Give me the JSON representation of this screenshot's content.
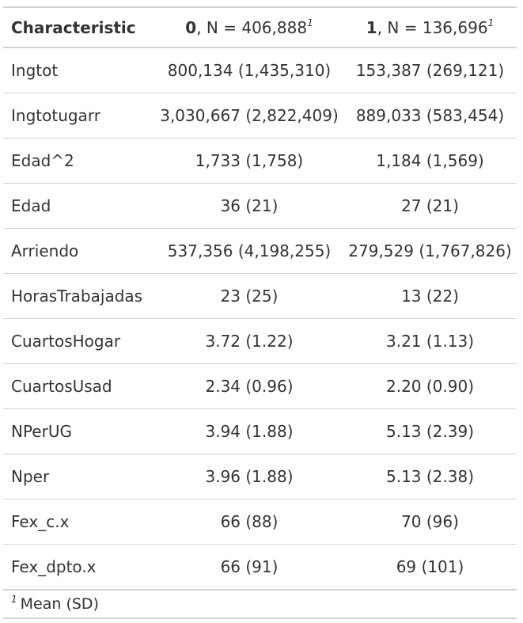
{
  "header": {
    "characteristic": "Characteristic",
    "group0": {
      "name": "0",
      "n_text": ", N = 406,888",
      "footnote_mark": "1"
    },
    "group1": {
      "name": "1",
      "n_text": ", N = 136,696",
      "footnote_mark": "1"
    }
  },
  "rows": [
    {
      "label": "Ingtot",
      "v0": "800,134 (1,435,310)",
      "v1": "153,387 (269,121)"
    },
    {
      "label": "Ingtotugarr",
      "v0": "3,030,667 (2,822,409)",
      "v1": "889,033 (583,454)"
    },
    {
      "label": "Edad^2",
      "v0": "1,733 (1,758)",
      "v1": "1,184 (1,569)"
    },
    {
      "label": "Edad",
      "v0": "36 (21)",
      "v1": "27 (21)"
    },
    {
      "label": "Arriendo",
      "v0": "537,356 (4,198,255)",
      "v1": "279,529 (1,767,826)"
    },
    {
      "label": "HorasTrabajadas",
      "v0": "23 (25)",
      "v1": "13 (22)"
    },
    {
      "label": "CuartosHogar",
      "v0": "3.72 (1.22)",
      "v1": "3.21 (1.13)"
    },
    {
      "label": "CuartosUsad",
      "v0": "2.34 (0.96)",
      "v1": "2.20 (0.90)"
    },
    {
      "label": "NPerUG",
      "v0": "3.94 (1.88)",
      "v1": "5.13 (2.39)"
    },
    {
      "label": "Nper",
      "v0": "3.96 (1.88)",
      "v1": "5.13 (2.38)"
    },
    {
      "label": "Fex_c.x",
      "v0": "66 (88)",
      "v1": "70 (96)"
    },
    {
      "label": "Fex_dpto.x",
      "v0": "66 (91)",
      "v1": "69 (101)"
    }
  ],
  "footnote": {
    "mark": "1",
    "text": "Mean (SD)"
  }
}
